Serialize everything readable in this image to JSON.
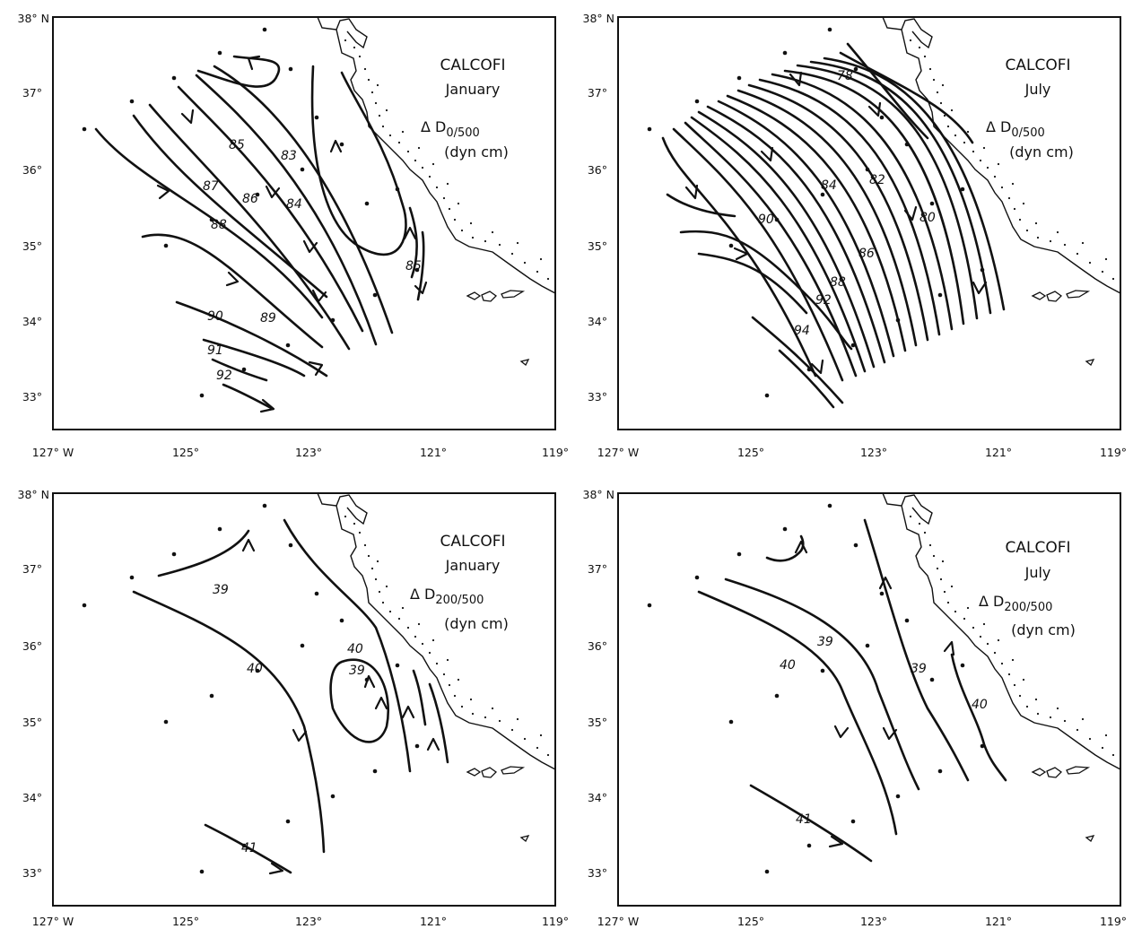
{
  "figure": {
    "panels": [
      {
        "id": "jan-0-500",
        "title": "CALCOFI",
        "month": "January",
        "quantity": "Δ D",
        "subscript": "0/500",
        "units": "(dyn cm)",
        "x_ticks": [
          "127° W",
          "125°",
          "123°",
          "121°",
          "119°"
        ],
        "y_ticks": [
          "38° N",
          "37°",
          "36°",
          "35°",
          "34°",
          "33°"
        ],
        "contour_labels": [
          "85",
          "83",
          "87",
          "86",
          "84",
          "88",
          "89",
          "90",
          "91",
          "92",
          "85"
        ]
      },
      {
        "id": "jul-0-500",
        "title": "CALCOFI",
        "month": "July",
        "quantity": "Δ D",
        "subscript": "0/500",
        "units": "(dyn cm)",
        "x_ticks": [
          "127° W",
          "125°",
          "123°",
          "121°",
          "119°"
        ],
        "y_ticks": [
          "38° N",
          "37°",
          "36°",
          "35°",
          "34°",
          "33°"
        ],
        "contour_labels": [
          "78",
          "84",
          "82",
          "90",
          "80",
          "86",
          "88",
          "92",
          "94"
        ]
      },
      {
        "id": "jan-200-500",
        "title": "CALCOFI",
        "month": "January",
        "quantity": "Δ D",
        "subscript": "200/500",
        "units": "(dyn cm)",
        "x_ticks": [
          "127° W",
          "125°",
          "123°",
          "121°",
          "119°"
        ],
        "y_ticks": [
          "38° N",
          "37°",
          "36°",
          "35°",
          "34°",
          "33°"
        ],
        "contour_labels": [
          "39",
          "40",
          "40",
          "39",
          "41"
        ]
      },
      {
        "id": "jul-200-500",
        "title": "CALCOFI",
        "month": "July",
        "quantity": "Δ D",
        "subscript": "200/500",
        "units": "(dyn cm)",
        "x_ticks": [
          "127° W",
          "125°",
          "123°",
          "121°",
          "119°"
        ],
        "y_ticks": [
          "38° N",
          "37°",
          "36°",
          "35°",
          "34°",
          "33°"
        ],
        "contour_labels": [
          "39",
          "40",
          "39",
          "40",
          "41"
        ]
      }
    ]
  }
}
